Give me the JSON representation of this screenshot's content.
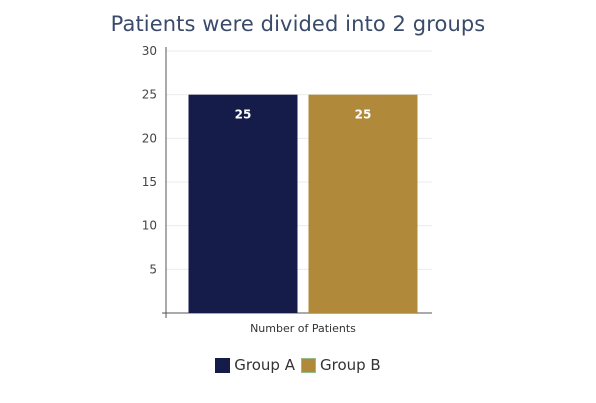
{
  "chart_data": {
    "type": "bar",
    "title": "Patients were divided into 2 groups",
    "categories": [
      "Number of Patients"
    ],
    "series": [
      {
        "name": "Group A",
        "values": [
          25
        ],
        "color": "#151c4a",
        "label": "25"
      },
      {
        "name": "Group B",
        "values": [
          25
        ],
        "color": "#b08a3a",
        "label": "25"
      }
    ],
    "yticks": [
      5,
      10,
      15,
      20,
      25,
      30
    ],
    "ylim": [
      0,
      30
    ],
    "grid": true,
    "legend_position": "bottom"
  }
}
